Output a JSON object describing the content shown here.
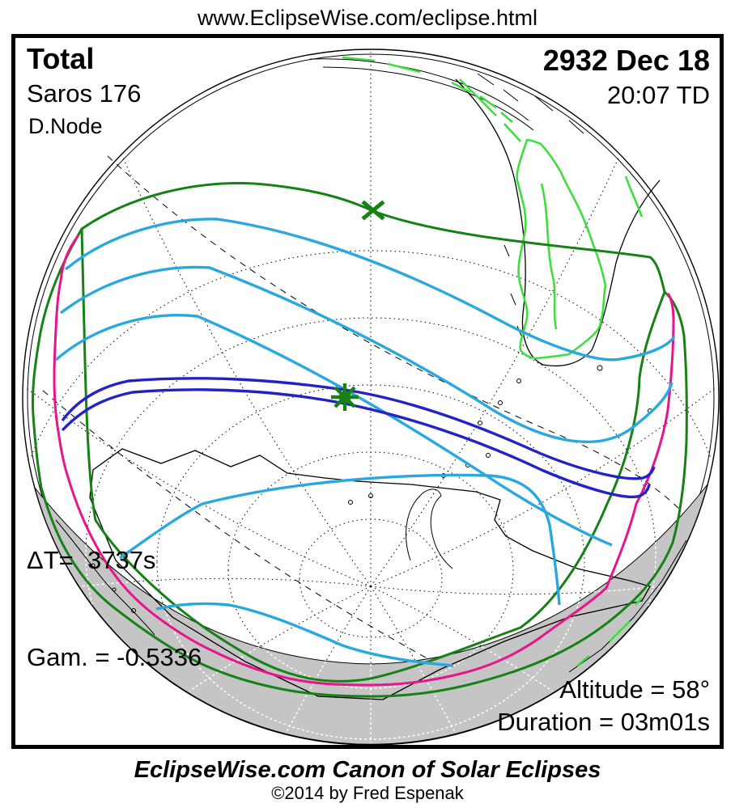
{
  "header": {
    "url": "www.EclipseWise.com/eclipse.html"
  },
  "map": {
    "eclipse_type": "Total",
    "saros": "Saros 176",
    "node": "D.Node",
    "date": "2932 Dec 18",
    "time": "20:07 TD",
    "delta_t": "ΔT=  3737s",
    "gamma": "Gam. = -0.5336",
    "altitude": "Altitude = 58°",
    "duration": "Duration = 03m01s",
    "colors": {
      "penumbra_green": "#168216",
      "magnitude_cyan": "#29a8e0",
      "sunrise_sunset_magenta": "#e8148c",
      "umbra_blue": "#2222c8",
      "land_highlight_green": "#3fde3f",
      "night_grey": "#c5c5c5",
      "coast_black": "#000000"
    }
  },
  "footer": {
    "title": "EclipseWise.com Canon of Solar Eclipses",
    "copyright": "©2014 by Fred Espenak"
  }
}
